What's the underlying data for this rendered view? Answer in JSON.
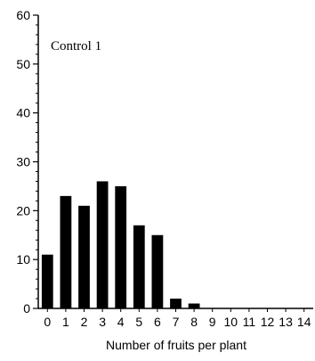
{
  "chart_data": {
    "type": "bar",
    "title": "Control 1",
    "xlabel": "Number of fruits per plant",
    "ylabel": "",
    "categories": [
      "0",
      "1",
      "2",
      "3",
      "4",
      "5",
      "6",
      "7",
      "8",
      "9",
      "10",
      "11",
      "12",
      "13",
      "14"
    ],
    "values": [
      11,
      23,
      21,
      26,
      25,
      17,
      15,
      2,
      1,
      0,
      0,
      0,
      0,
      0,
      0
    ],
    "ylim": [
      0,
      60
    ],
    "yticks": [
      0,
      10,
      20,
      30,
      40,
      50,
      60
    ],
    "grid": false,
    "legend": "none",
    "bar_color": "#000000",
    "axis_color": "#000000"
  }
}
